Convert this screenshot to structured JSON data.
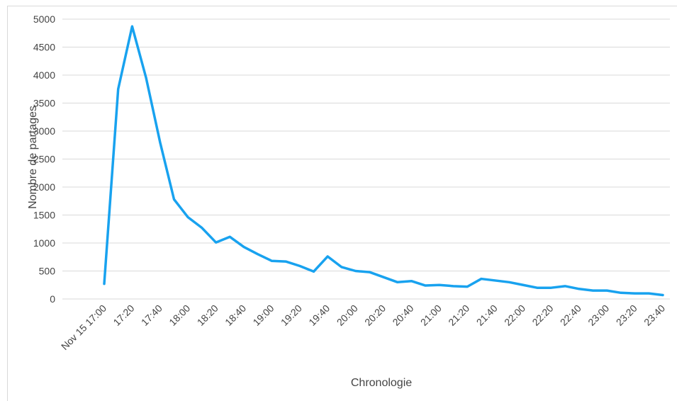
{
  "chart_data": {
    "type": "line",
    "x_label": "Chronologie",
    "y_label": "Nombre de partages",
    "categories": [
      "Nov 15 17:00",
      null,
      "17:20",
      null,
      "17:40",
      null,
      "18:00",
      null,
      "18:20",
      null,
      "18:40",
      null,
      "19:00",
      null,
      "19:20",
      null,
      "19:40",
      null,
      "20:00",
      null,
      "20:20",
      null,
      "20:40",
      null,
      "21:00",
      null,
      "21:20",
      null,
      "21:40",
      null,
      "22:00",
      null,
      "22:20",
      null,
      "22:40",
      null,
      "23:00",
      null,
      "23:20",
      null,
      "23:40"
    ],
    "series": [
      {
        "color": "#18a2ef",
        "values": [
          270,
          3750,
          4870,
          3950,
          2800,
          1780,
          1460,
          1270,
          1010,
          1110,
          930,
          800,
          680,
          670,
          590,
          490,
          760,
          570,
          500,
          480,
          390,
          300,
          320,
          240,
          250,
          230,
          220,
          360,
          330,
          300,
          250,
          200,
          200,
          230,
          180,
          150,
          150,
          110,
          100,
          100,
          70
        ]
      }
    ],
    "ylim": [
      0,
      5000
    ],
    "yticks": [
      0,
      500,
      1000,
      1500,
      2000,
      2500,
      3000,
      3500,
      4000,
      4500,
      5000
    ],
    "grid": true
  }
}
